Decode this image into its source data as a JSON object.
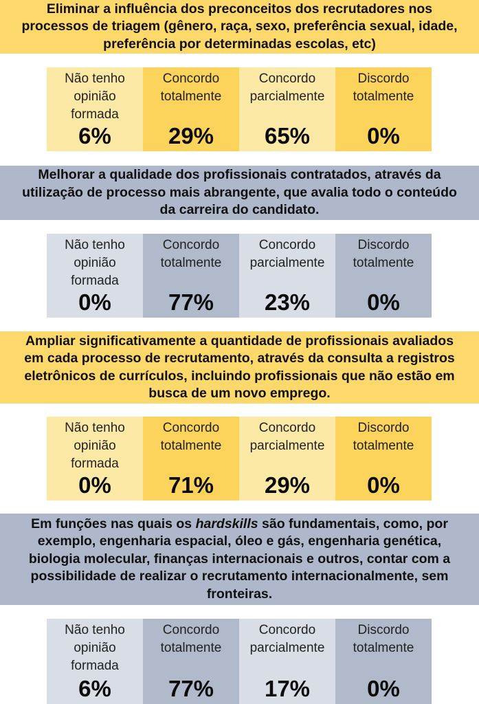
{
  "labels": {
    "no_opinion": "Não tenho\nopinião\nformada",
    "agree_total": "Concordo\ntotalmente",
    "agree_partial": "Concordo\nparcialmente",
    "disagree_total": "Discordo\ntotalmente"
  },
  "sections": [
    {
      "title": "Eliminar a influência dos preconceitos dos recrutadores nos processos de triagem (gênero, raça, sexo, preferência sexual, idade, preferência por determinadas escolas, etc)",
      "values": [
        "6%",
        "29%",
        "65%",
        "0%"
      ],
      "theme": "yellow"
    },
    {
      "title": "Melhorar a qualidade dos profissionais contratados, através da utilização de processo mais abrangente, que avalia todo o conteúdo da carreira do candidato.",
      "values": [
        "0%",
        "77%",
        "23%",
        "0%"
      ],
      "theme": "blue"
    },
    {
      "title": "Ampliar significativamente a quantidade de profissionais avaliados em cada processo de recrutamento, através da consulta a registros eletrônicos de currículos, incluindo profissionais que não estão em busca de um novo emprego.",
      "values": [
        "0%",
        "71%",
        "29%",
        "0%"
      ],
      "theme": "yellow"
    },
    {
      "title_pre": "Em funções nas quais os ",
      "title_em": "hardskills",
      "title_post": " são fundamentais, como, por exemplo, engenharia espacial, óleo e gás, engenharia genética, biologia molecular, finanças internacionais e outros, contar com a possibilidade de realizar o recrutamento internacionalmente, sem fronteiras.",
      "values": [
        "6%",
        "77%",
        "17%",
        "0%"
      ],
      "theme": "blue"
    }
  ],
  "colors": {
    "yellow_banner": "#fdd86a",
    "yellow_light": "#fde9a6",
    "yellow_dark": "#fcd35b",
    "blue_banner": "#aeb8ca",
    "blue_light": "#d8dde6",
    "blue_dark": "#b0bacb"
  }
}
